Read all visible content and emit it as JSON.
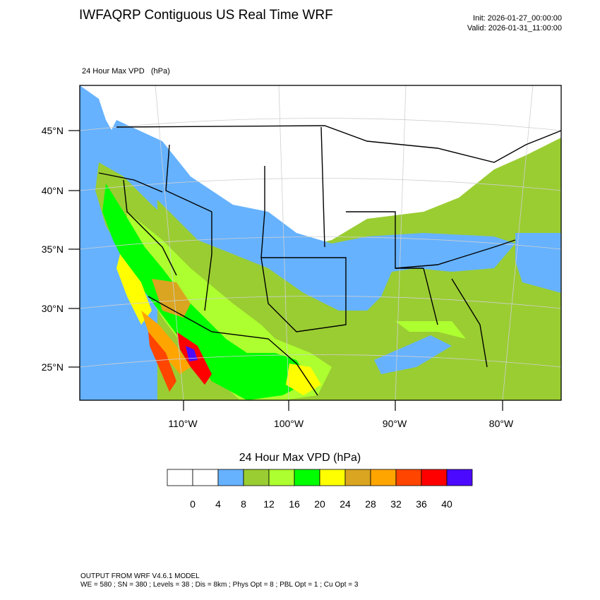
{
  "header": {
    "title": "IWFAQRP Contiguous US Real Time WRF",
    "init": "Init: 2026-01-27_00:00:00",
    "valid": "Valid: 2026-01-31_11:00:00"
  },
  "field": {
    "name": "24 Hour Max VPD",
    "unit": "(hPa)"
  },
  "map": {
    "projection": "Lambert Conformal",
    "region": "Contiguous US",
    "lat_labels": [
      "45°N",
      "40°N",
      "35°N",
      "30°N",
      "25°N"
    ],
    "lon_labels": [
      "110°W",
      "100°W",
      "90°W",
      "80°W"
    ],
    "ocean_color": "#66b2ff",
    "gulf_color": "#9acd32"
  },
  "colorbar": {
    "title": "24 Hour Max VPD  (hPa)",
    "colors": [
      "#ffffff",
      "#ffffff",
      "#66b2ff",
      "#9acd32",
      "#adff2f",
      "#00ff00",
      "#ffff00",
      "#daa520",
      "#ffa500",
      "#ff4500",
      "#ff0000",
      "#4b0aff"
    ],
    "tick_labels": [
      "0",
      "4",
      "8",
      "12",
      "16",
      "20",
      "24",
      "28",
      "32",
      "36",
      "40"
    ]
  },
  "footer": {
    "line1": "OUTPUT FROM WRF V4.6.1 MODEL",
    "line2": "WE = 580 ; SN = 380 ; Levels = 38 ; Dis = 8km ; Phys Opt = 8 ; PBL Opt = 1 ; Cu Opt = 3"
  }
}
